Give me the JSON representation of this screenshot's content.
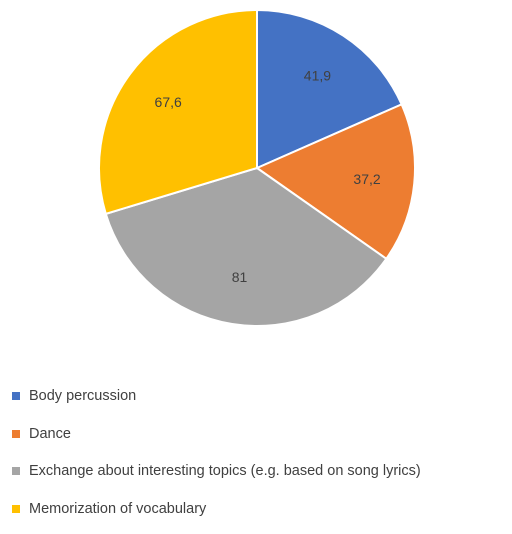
{
  "chart_data": {
    "type": "pie",
    "categories": [
      "Body percussion",
      "Dance",
      "Exchange about interesting topics (e.g. based on song lyrics)",
      "Memorization of vocabulary"
    ],
    "values": [
      41.9,
      37.2,
      81,
      67.6
    ],
    "data_labels": [
      "41,9",
      "37,2",
      "81",
      "67,6"
    ],
    "colors": [
      "#4472C4",
      "#ED7D31",
      "#A5A5A5",
      "#FFC000"
    ],
    "start_angle": "12 o'clock",
    "direction": "clockwise",
    "title": "",
    "legend_position": "bottom"
  }
}
